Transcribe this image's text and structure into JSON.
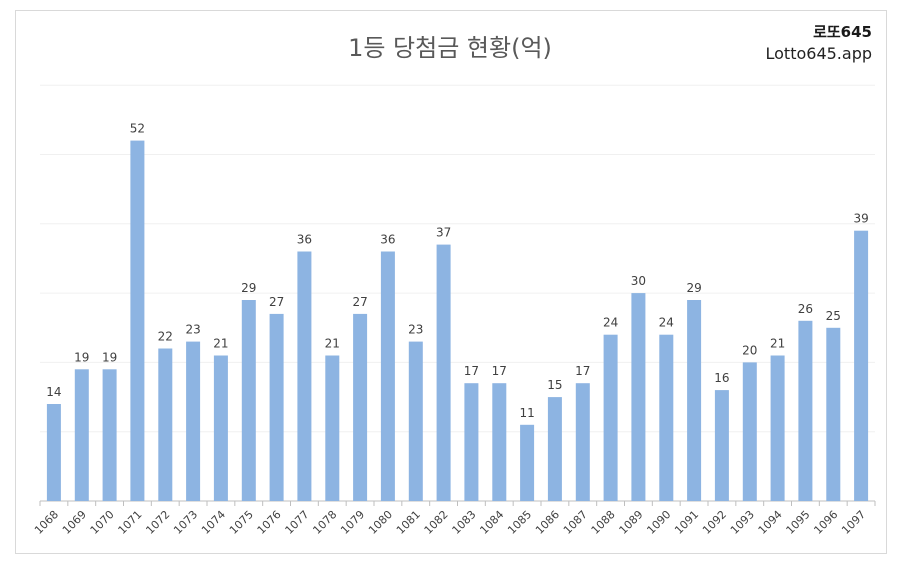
{
  "chart_data": {
    "type": "bar",
    "title": "1등 당첨금 현황(억)",
    "categories": [
      "1068",
      "1069",
      "1070",
      "1071",
      "1072",
      "1073",
      "1074",
      "1075",
      "1076",
      "1077",
      "1078",
      "1079",
      "1080",
      "1081",
      "1082",
      "1083",
      "1084",
      "1085",
      "1086",
      "1087",
      "1088",
      "1089",
      "1090",
      "1091",
      "1092",
      "1093",
      "1094",
      "1095",
      "1096",
      "1097"
    ],
    "values": [
      14,
      19,
      19,
      52,
      22,
      23,
      21,
      29,
      27,
      36,
      21,
      27,
      36,
      23,
      37,
      17,
      17,
      11,
      15,
      17,
      24,
      30,
      24,
      29,
      16,
      20,
      21,
      26,
      25,
      39
    ],
    "ylim": [
      0,
      60
    ],
    "grid": true,
    "bar_color": "#8db4e2",
    "xlabel": "",
    "ylabel": ""
  },
  "brand": {
    "name": "로또645",
    "url": "Lotto645.app"
  }
}
